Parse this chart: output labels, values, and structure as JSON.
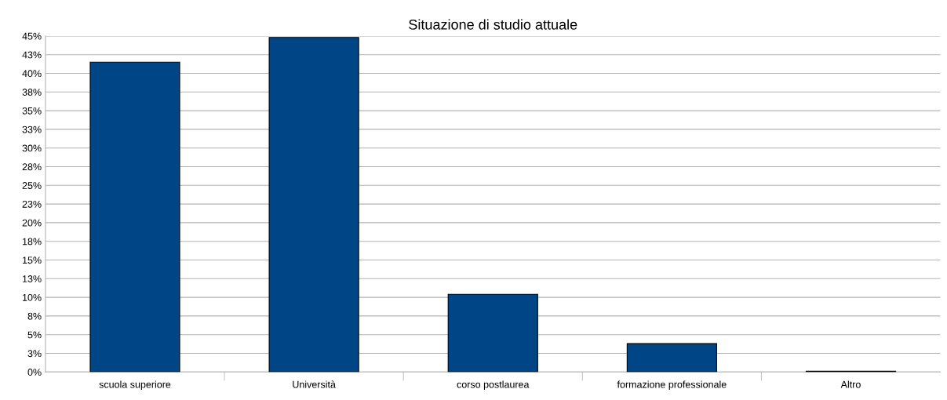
{
  "chart_data": {
    "type": "bar",
    "title": "Situazione di studio attuale",
    "categories": [
      "scuola superiore",
      "Università",
      "corso postlaurea",
      "formazione professionale",
      "Altro"
    ],
    "values": [
      41.5,
      44.8,
      10.4,
      3.8,
      0.1
    ],
    "color": "#004586",
    "ylim": [
      0,
      45
    ],
    "yticks": [
      {
        "value": 0,
        "label": "0%"
      },
      {
        "value": 2.5,
        "label": "3%"
      },
      {
        "value": 5,
        "label": "5%"
      },
      {
        "value": 7.5,
        "label": "8%"
      },
      {
        "value": 10,
        "label": "10%"
      },
      {
        "value": 12.5,
        "label": "13%"
      },
      {
        "value": 15,
        "label": "15%"
      },
      {
        "value": 17.5,
        "label": "18%"
      },
      {
        "value": 20,
        "label": "20%"
      },
      {
        "value": 22.5,
        "label": "23%"
      },
      {
        "value": 25,
        "label": "25%"
      },
      {
        "value": 27.5,
        "label": "28%"
      },
      {
        "value": 30,
        "label": "30%"
      },
      {
        "value": 32.5,
        "label": "33%"
      },
      {
        "value": 35,
        "label": "35%"
      },
      {
        "value": 37.5,
        "label": "38%"
      },
      {
        "value": 40,
        "label": "40%"
      },
      {
        "value": 42.5,
        "label": "43%"
      },
      {
        "value": 45,
        "label": "45%"
      }
    ],
    "grid": "y"
  }
}
